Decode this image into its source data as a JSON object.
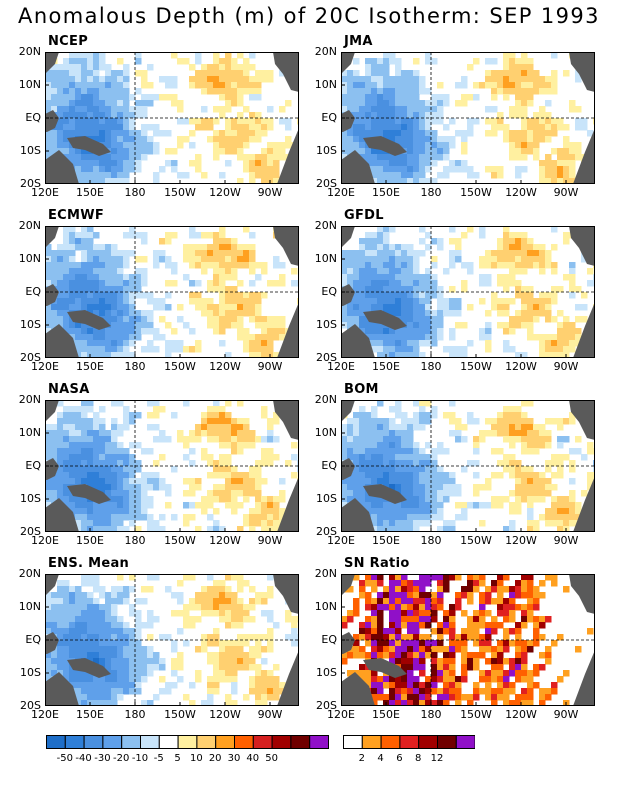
{
  "title": "Anomalous Depth (m) of 20C Isotherm: SEP 1993",
  "axes": {
    "lat_labels": [
      "20N",
      "10N",
      "EQ",
      "10S",
      "20S"
    ],
    "lon_labels": [
      "120E",
      "150E",
      "180",
      "150W",
      "120W",
      "90W"
    ]
  },
  "panels": [
    {
      "label": "NCEP",
      "kind": "anom"
    },
    {
      "label": "JMA",
      "kind": "anom"
    },
    {
      "label": "ECMWF",
      "kind": "anom"
    },
    {
      "label": "GFDL",
      "kind": "anom"
    },
    {
      "label": "NASA",
      "kind": "anom"
    },
    {
      "label": "BOM",
      "kind": "anom"
    },
    {
      "label": "ENS. Mean",
      "kind": "anom"
    },
    {
      "label": "SN Ratio",
      "kind": "snr"
    }
  ],
  "colorbar_anomaly": {
    "ticks": [
      "-50",
      "-40",
      "-30",
      "-20",
      "-10",
      "-5",
      "5",
      "10",
      "20",
      "30",
      "40",
      "50"
    ],
    "colors": [
      "#1e6ec8",
      "#2f7fd8",
      "#4a90e0",
      "#5fa0ea",
      "#8cc0f0",
      "#c8e4fa",
      "#ffffff",
      "#fff0a0",
      "#ffd070",
      "#ffa020",
      "#ff6000",
      "#d62020",
      "#a00000",
      "#700000",
      "#9010c8"
    ]
  },
  "colorbar_snr": {
    "ticks": [
      "2",
      "4",
      "6",
      "8",
      "12"
    ],
    "colors": [
      "#ffffff",
      "#ffa020",
      "#ff6000",
      "#e02020",
      "#a00000",
      "#700000",
      "#9010c8"
    ]
  }
}
